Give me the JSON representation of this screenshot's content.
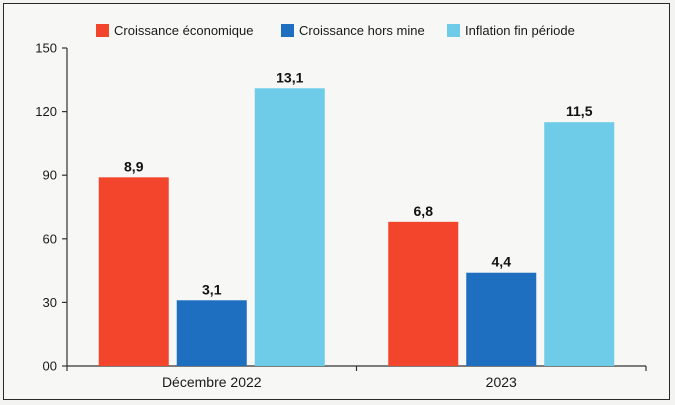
{
  "chart_data": {
    "type": "bar",
    "title": "",
    "xlabel": "",
    "ylabel": "",
    "categories": [
      "Décembre 2022",
      "2023"
    ],
    "ylim": [
      0,
      150
    ],
    "yticks": [
      0,
      30,
      60,
      90,
      120,
      150
    ],
    "ytick_labels": [
      "00",
      "30",
      "60",
      "90",
      "120",
      "150"
    ],
    "grid": false,
    "legend_position": "top",
    "series": [
      {
        "name": "Croissance économique",
        "color": "#f2452b",
        "values": [
          89,
          68
        ],
        "labels": [
          "8,9",
          "6,8"
        ]
      },
      {
        "name": "Croissance hors mine",
        "color": "#1f6fc0",
        "values": [
          31,
          44
        ],
        "labels": [
          "3,1",
          "4,4"
        ]
      },
      {
        "name": "Inflation fin période",
        "color": "#6fcce8",
        "values": [
          131,
          115
        ],
        "labels": [
          "13,1",
          "11,5"
        ]
      }
    ]
  }
}
